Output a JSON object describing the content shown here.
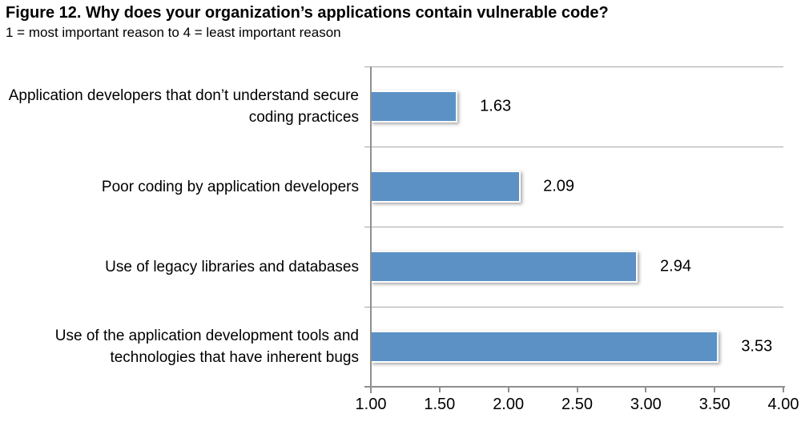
{
  "chart_data": {
    "type": "bar",
    "orientation": "horizontal",
    "title": "Figure 12. Why does your organization’s applications contain vulnerable code?",
    "subtitle": "1 = most important reason to 4 = least important reason",
    "categories": [
      "Application developers that don’t understand secure coding practices",
      "Poor coding by application developers",
      "Use of legacy libraries and databases",
      "Use of the application development tools and technologies that have inherent bugs"
    ],
    "values": [
      1.63,
      2.09,
      2.94,
      3.53
    ],
    "value_labels": [
      "1.63",
      "2.09",
      "2.94",
      "3.53"
    ],
    "xlim": [
      1.0,
      4.0
    ],
    "x_ticks": [
      "1.00",
      "1.50",
      "2.00",
      "2.50",
      "3.00",
      "3.50",
      "4.00"
    ],
    "legend": "none",
    "grid": "category-separator-lines-only",
    "colors": {
      "bar": "#5B91C5",
      "axis": "#8F8F8F",
      "separator": "#A6A6A6",
      "text": "#000000",
      "background": "#FFFFFF"
    }
  }
}
